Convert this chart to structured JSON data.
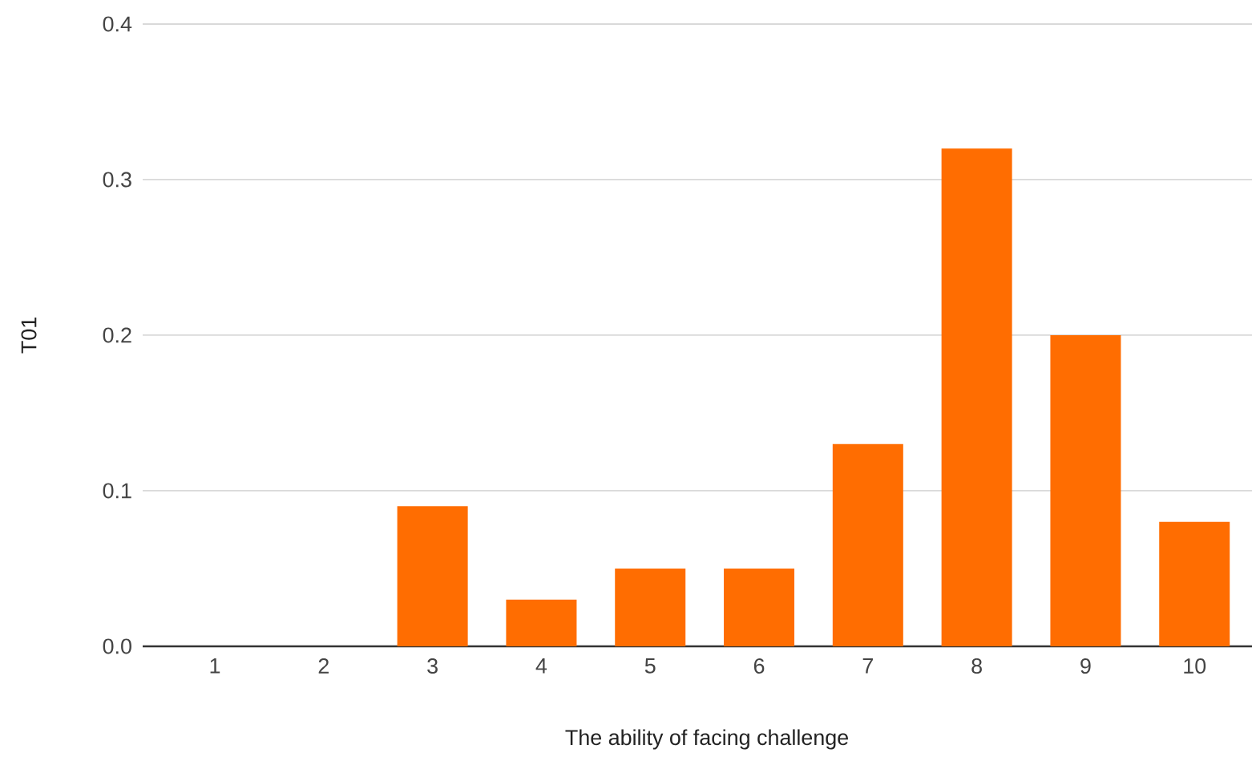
{
  "chart_data": {
    "type": "bar",
    "xlabel": "The ability of facing challenge",
    "ylabel": "T01",
    "categories": [
      "1",
      "2",
      "3",
      "4",
      "5",
      "6",
      "7",
      "8",
      "9",
      "10"
    ],
    "values": [
      0,
      0,
      0.09,
      0.03,
      0.05,
      0.05,
      0.13,
      0.32,
      0.2,
      0.08
    ],
    "color": "#ff6d01",
    "ylim": [
      0,
      0.4
    ],
    "yticks": [
      {
        "value": 0,
        "label": "0.0"
      },
      0.1,
      0.2,
      0.3,
      0.4
    ],
    "grid": "y"
  }
}
